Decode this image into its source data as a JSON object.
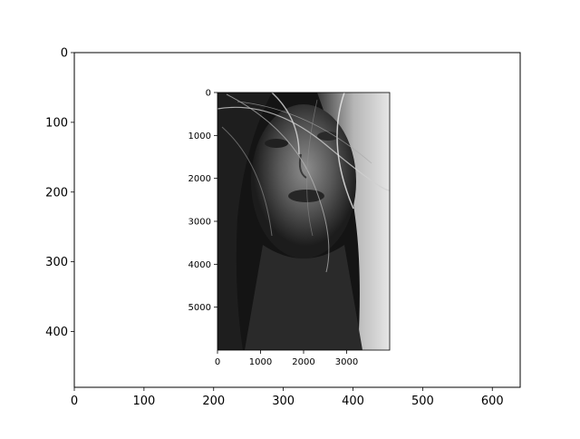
{
  "chart_data": [
    {
      "type": "image-plot",
      "title": "",
      "xlabel": "",
      "ylabel": "",
      "xlim": [
        0,
        640
      ],
      "ylim": [
        480,
        0
      ],
      "x_ticks": [
        0,
        100,
        200,
        300,
        400,
        500,
        600
      ],
      "y_ticks": [
        0,
        100,
        200,
        300,
        400
      ],
      "grid": false,
      "background": "#ffffff",
      "axis_color": "#000000"
    },
    {
      "type": "image",
      "title": "",
      "xlabel": "",
      "ylabel": "",
      "xlim": [
        0,
        4000
      ],
      "ylim": [
        6000,
        0
      ],
      "x_ticks": [
        0,
        1000,
        2000,
        3000
      ],
      "y_ticks": [
        0,
        1000,
        2000,
        3000,
        4000,
        5000
      ],
      "grid": false,
      "content": "grayscale portrait photograph of a woman's face with hair blowing across it",
      "colormap": "gray",
      "colors": {
        "hair_light": "#d9d9d9",
        "background_dark": "#151515",
        "skin_mid": "#7a7a7a"
      }
    }
  ]
}
